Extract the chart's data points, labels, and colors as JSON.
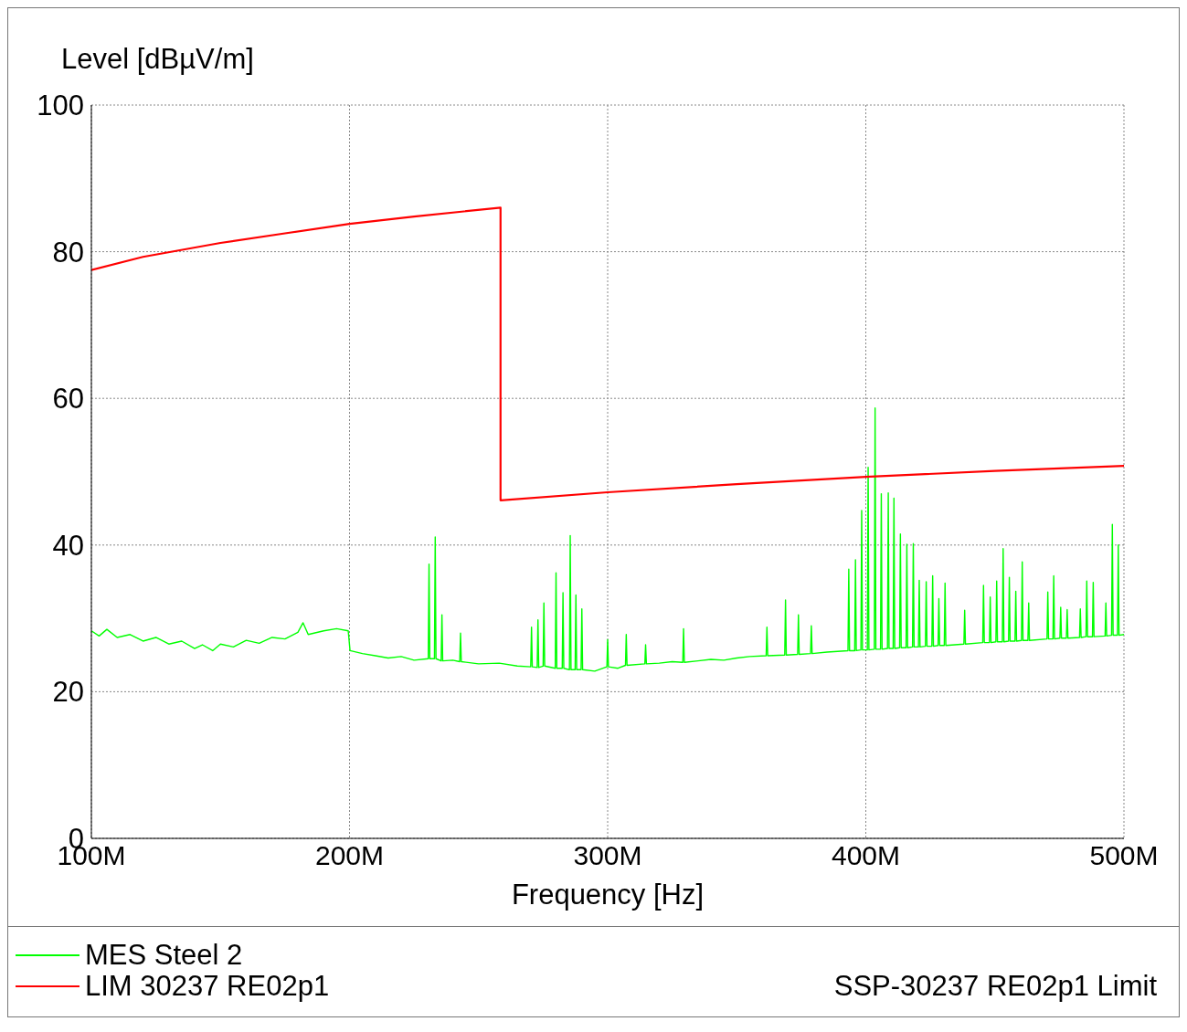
{
  "chart_data": {
    "type": "line",
    "ylabel": "Level  [dBµV/m]",
    "xlabel": "Frequency [Hz]",
    "xlim": [
      100,
      500
    ],
    "xticks": [
      {
        "value": 100,
        "label": "100M"
      },
      {
        "value": 200,
        "label": "200M"
      },
      {
        "value": 300,
        "label": "300M"
      },
      {
        "value": 400,
        "label": "400M"
      },
      {
        "value": 500,
        "label": "500M"
      }
    ],
    "ylim": [
      0,
      100
    ],
    "yticks": [
      0,
      20,
      40,
      60,
      80,
      100
    ],
    "grid": true,
    "legend": "bottom",
    "marker": "none",
    "line_style": "solid",
    "annotations": [
      "SSP-30237  RE02p1 Limit"
    ],
    "series": [
      {
        "name": "MES  Steel 2",
        "color": "#00ff00",
        "x": [
          100,
          103,
          106,
          110,
          115,
          120,
          125,
          130,
          135,
          140,
          143,
          147,
          150,
          155,
          160,
          165,
          170,
          175,
          180,
          182,
          184,
          190,
          195,
          199.5,
          200.2,
          205,
          210,
          215,
          220,
          225,
          230.5,
          230.8,
          231.1,
          232.9,
          233.2,
          233.5,
          235.5,
          235.8,
          236.1,
          240,
          242.7,
          243,
          243.3,
          250,
          258,
          265,
          270.2,
          270.5,
          270.8,
          272.7,
          273,
          273.3,
          275,
          275.3,
          275.6,
          279.7,
          280,
          280.3,
          282.4,
          282.7,
          283,
          285.2,
          285.5,
          285.8,
          287.4,
          287.7,
          288,
          289.7,
          290,
          290.3,
          295,
          299.7,
          300,
          300.3,
          304,
          306.9,
          307.2,
          307.5,
          314.4,
          314.7,
          315,
          320,
          325,
          329.1,
          329.4,
          329.7,
          335,
          340,
          345,
          350,
          355,
          361.4,
          361.7,
          362,
          368.6,
          368.9,
          369.2,
          373.6,
          373.9,
          374.2,
          378.6,
          378.9,
          379.2,
          385,
          393.1,
          393.4,
          393.7,
          395.7,
          396,
          396.3,
          398.1,
          398.4,
          398.7,
          400.6,
          400.9,
          401.2,
          403.3,
          403.6,
          403.9,
          405.7,
          406,
          406.3,
          408.4,
          408.7,
          409,
          410.6,
          410.9,
          411.2,
          413.1,
          413.4,
          413.7,
          415.6,
          415.9,
          416.2,
          418.1,
          418.4,
          418.7,
          420.4,
          420.7,
          421,
          423.1,
          423.4,
          423.7,
          425.6,
          425.9,
          426.2,
          428,
          428.3,
          428.6,
          430.4,
          430.7,
          431,
          438,
          438.3,
          438.6,
          445.3,
          445.6,
          445.9,
          447.9,
          448.2,
          448.5,
          450.4,
          450.7,
          451,
          452.9,
          453.2,
          453.5,
          455.3,
          455.6,
          455.9,
          457.8,
          458.1,
          458.4,
          460.3,
          460.6,
          460.9,
          462.8,
          463.1,
          463.4,
          470.2,
          470.5,
          470.8,
          472.5,
          472.8,
          473.1,
          475.2,
          475.5,
          475.8,
          477.7,
          478,
          478.3,
          482.8,
          483.1,
          483.4,
          485.3,
          485.6,
          485.9,
          487.8,
          488.1,
          488.4,
          492.7,
          493,
          493.3,
          495.2,
          495.5,
          495.8,
          497.5,
          497.8,
          498.1,
          500
        ],
        "values": [
          28.3,
          27.6,
          28.5,
          27.4,
          27.8,
          26.9,
          27.4,
          26.5,
          26.9,
          25.9,
          26.4,
          25.6,
          26.5,
          26.1,
          27,
          26.6,
          27.4,
          27.2,
          28.1,
          29.4,
          27.8,
          28.3,
          28.6,
          28.3,
          25.6,
          25.2,
          24.9,
          24.6,
          24.8,
          24.3,
          24.5,
          37.4,
          24.5,
          24.5,
          41.1,
          24.5,
          24.2,
          30.5,
          24.2,
          24.3,
          24.1,
          28,
          24.1,
          23.8,
          23.9,
          23.5,
          23.4,
          28.8,
          23.4,
          23.3,
          29.8,
          23.3,
          23.5,
          32.1,
          23.5,
          23.2,
          36.2,
          23.2,
          23.2,
          33.5,
          23.2,
          23,
          41.3,
          23,
          23,
          33.2,
          23,
          23,
          31.3,
          23,
          22.8,
          23.4,
          27.1,
          23.4,
          23.2,
          23.6,
          27.8,
          23.6,
          23.8,
          26.4,
          23.8,
          23.9,
          24.1,
          24,
          28.6,
          24,
          24.2,
          24.4,
          24.3,
          24.6,
          24.8,
          24.9,
          28.8,
          24.9,
          25,
          32.5,
          25,
          25.1,
          30.5,
          25.1,
          25.2,
          29,
          25.2,
          25.4,
          25.6,
          36.7,
          25.6,
          25.6,
          38,
          25.6,
          25.7,
          44.7,
          25.7,
          25.7,
          50.6,
          25.7,
          25.8,
          58.7,
          25.8,
          25.8,
          47,
          25.8,
          25.9,
          47.1,
          25.9,
          25.9,
          46.4,
          25.9,
          26,
          41.5,
          26,
          26,
          40.1,
          26,
          26.1,
          40.2,
          26.1,
          26.1,
          35.2,
          26.1,
          26.2,
          35,
          26.2,
          26.2,
          35.8,
          26.2,
          26.3,
          32.7,
          26.3,
          26.3,
          34.8,
          26.3,
          26.5,
          31.1,
          26.5,
          26.7,
          34.5,
          26.7,
          26.7,
          32.9,
          26.7,
          26.8,
          35.1,
          26.8,
          26.8,
          39.5,
          26.8,
          26.9,
          35.6,
          26.9,
          26.9,
          33.7,
          26.9,
          27,
          37.7,
          27,
          27,
          32.1,
          27,
          27.2,
          33.6,
          27.2,
          27.2,
          35.8,
          27.2,
          27.3,
          31.5,
          27.3,
          27.3,
          31.2,
          27.3,
          27.4,
          31.3,
          27.4,
          27.5,
          35.1,
          27.5,
          27.5,
          34.9,
          27.5,
          27.6,
          32.1,
          27.6,
          27.7,
          42.8,
          27.7,
          27.7,
          40,
          27.7,
          27.8
        ]
      },
      {
        "name": "LIM  30237 RE02p1",
        "color": "#ff0000",
        "x": [
          100,
          120,
          150,
          175,
          200,
          225,
          258.5,
          258.5,
          300,
          350,
          400,
          450,
          500
        ],
        "values": [
          77.5,
          79.3,
          81.2,
          82.5,
          83.8,
          84.8,
          86,
          46.1,
          47.2,
          48.3,
          49.3,
          50.1,
          50.8
        ]
      }
    ]
  }
}
